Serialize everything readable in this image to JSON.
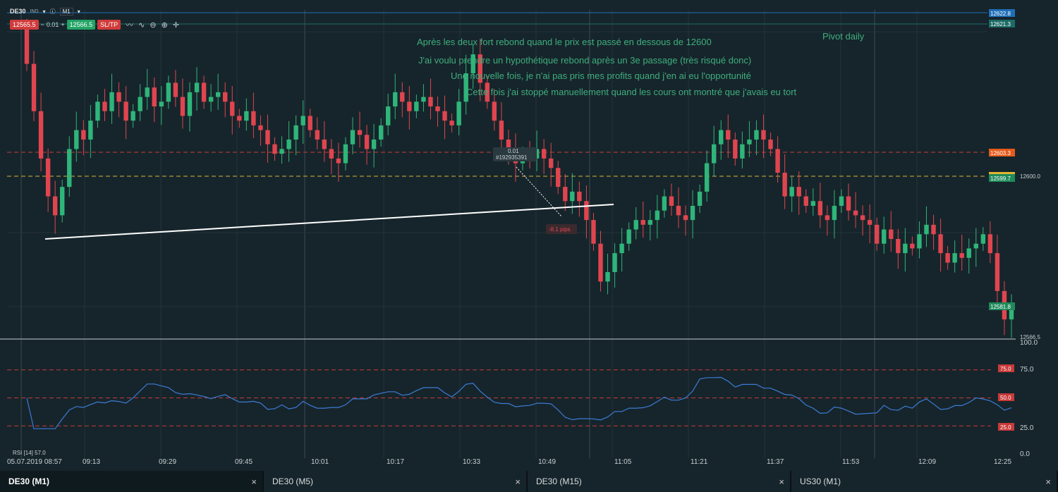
{
  "toolbar": {
    "symbol": "DE30",
    "type_badge": "IND",
    "timeframe": "M1",
    "sell_price": "12565.5",
    "volume": "0.01",
    "buy_price": "12566.5",
    "sltp_label": "SL/TP",
    "minus_glyph": "−",
    "plus_glyph": "+"
  },
  "annotations": {
    "line1": "Après les deux fort rebond quand le prix est passé en dessous de 12600",
    "line2": "J'ai voulu prendre un hypothétique rebond après un 3e passage (très risqué donc)",
    "line3": "Une nouvelle fois, je n'ai pas pris mes profits quand j'en ai eu l'opportunité",
    "line4": "Cette fois j'ai stoppé manuellement quand les cours ont montré que j'avais eu tort",
    "pivot": "Pivot daily"
  },
  "price_labels": {
    "top1": "12622.8",
    "top2": "12621.3",
    "orange": "12603.3",
    "yellow": "12599.7",
    "axis_12600": "12600.0",
    "green_low": "12581.8",
    "current": "12566.5"
  },
  "trade_marker": {
    "volume": "0.01",
    "order_id": "#192935391",
    "pips": "-8.1 pips"
  },
  "rsi": {
    "label": "RSI [14] 57.0",
    "axis": [
      "100.0",
      "75.0",
      "25.0",
      "0.0"
    ],
    "levels": [
      "75.0",
      "50.0",
      "25.0"
    ]
  },
  "time_axis": [
    "05.07.2019 08:57",
    "09:13",
    "09:29",
    "09:45",
    "10:01",
    "10:17",
    "10:33",
    "10:49",
    "11:05",
    "11:21",
    "11:37",
    "11:53",
    "12:09",
    "12:25"
  ],
  "tabs": [
    {
      "label": "DE30 (M1)",
      "active": true
    },
    {
      "label": "DE30 (M5)",
      "active": false
    },
    {
      "label": "DE30 (M15)",
      "active": false
    },
    {
      "label": "US30 (M1)",
      "active": false
    }
  ],
  "colors": {
    "background": "#16252b",
    "bull": "#2fb57a",
    "bear": "#e0454f",
    "annotation_text": "#3fae7e",
    "rsi_line": "#3b7bd6",
    "level_red": "#c83a3a",
    "level_yellow": "#d9b23a"
  },
  "chart_data": {
    "type": "candlestick",
    "symbol": "DE30",
    "timeframe": "M1",
    "closes": [
      12618,
      12608,
      12598,
      12590,
      12586,
      12592,
      12600,
      12604,
      12602,
      12606,
      12610,
      12608,
      12612,
      12610,
      12606,
      12608,
      12611,
      12613,
      12609,
      12610,
      12614,
      12611,
      12607,
      12612,
      12614,
      12610,
      12611,
      12612,
      12610,
      12607,
      12606,
      12608,
      12605,
      12604,
      12601,
      12599,
      12600,
      12602,
      12605,
      12607,
      12604,
      12602,
      12600,
      12598,
      12597,
      12601,
      12604,
      12603,
      12600,
      12602,
      12605,
      12609,
      12612,
      12610,
      12608,
      12610,
      12611,
      12609,
      12608,
      12606,
      12605,
      12610,
      12616,
      12620,
      12614,
      12610,
      12606,
      12602,
      12600,
      12597,
      12599,
      12598,
      12600,
      12598,
      12596,
      12592,
      12589,
      12591,
      12589,
      12585,
      12580,
      12572,
      12574,
      12578,
      12580,
      12583,
      12585,
      12584,
      12585,
      12587,
      12590,
      12588,
      12586,
      12585,
      12588,
      12591,
      12597,
      12601,
      12604,
      12602,
      12598,
      12601,
      12602,
      12604,
      12602,
      12600,
      12595,
      12590,
      12592,
      12590,
      12588,
      12589,
      12586,
      12585,
      12588,
      12590,
      12587,
      12586,
      12585,
      12584,
      12580,
      12583,
      12581,
      12578,
      12580,
      12579,
      12582,
      12584,
      12582,
      12578,
      12576,
      12578,
      12577,
      12579,
      12580,
      12582,
      12578,
      12570,
      12564,
      12566
    ]
  }
}
